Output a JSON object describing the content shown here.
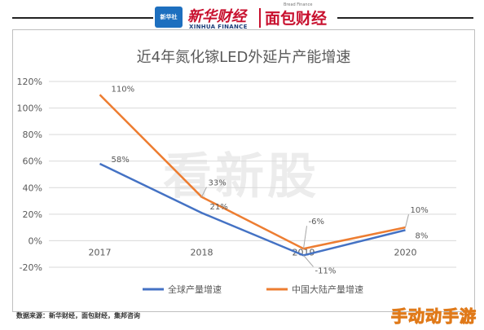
{
  "header": {
    "brand_box": "新华社",
    "brand_name_cn": "新华财经",
    "brand_name_en": "XINHUA FINANCE",
    "brand2_small": "Bread Finance",
    "brand2_name": "面包财经"
  },
  "watermark_center": "看新股",
  "source": "数据来源：新华财经，面包财经，集邦咨询",
  "watermark_corner": "手动动手游",
  "colors": {
    "global_series": "#4472c4",
    "china_series": "#ed7d31",
    "grid": "#d9d9d9",
    "text": "#595959"
  },
  "chart_data": {
    "type": "line",
    "title": "近4年氮化镓LED外延片产能增速",
    "categories": [
      "2017",
      "2018",
      "2019",
      "2020"
    ],
    "yticks": [
      "120%",
      "100%",
      "80%",
      "60%",
      "40%",
      "20%",
      "0%",
      "-20%"
    ],
    "ylim": [
      -0.2,
      1.2
    ],
    "grid": true,
    "legend_position": "bottom",
    "series": [
      {
        "name": "全球产量增速",
        "values": [
          0.58,
          0.21,
          -0.11,
          0.08
        ],
        "labels": [
          "58%",
          "21%",
          "-11%",
          "8%"
        ]
      },
      {
        "name": "中国大陆产量增速",
        "values": [
          1.1,
          0.33,
          -0.06,
          0.1
        ],
        "labels": [
          "110%",
          "33%",
          "-6%",
          "10%"
        ]
      }
    ]
  }
}
